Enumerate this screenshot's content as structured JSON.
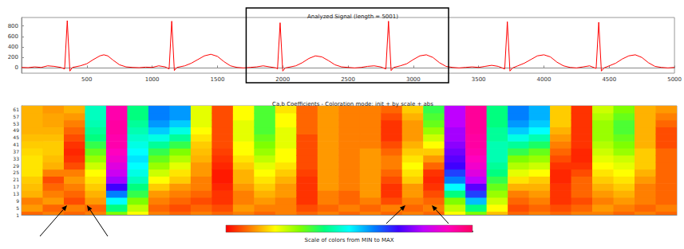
{
  "chart_data": [
    {
      "type": "line",
      "title": "Analyzed Signal (length = 5001)",
      "x": [
        0,
        50,
        100,
        150,
        200,
        250,
        300,
        330,
        350,
        370,
        390,
        450,
        500,
        550,
        600,
        630,
        660,
        700,
        750,
        800,
        850,
        900,
        950,
        1000,
        1050,
        1100,
        1130,
        1150,
        1170,
        1190,
        1250,
        1300,
        1350,
        1400,
        1450,
        1500,
        1550,
        1600,
        1650,
        1700,
        1750,
        1800,
        1850,
        1900,
        1950,
        1960,
        1980,
        2000,
        2020,
        2100,
        2150,
        2200,
        2250,
        2300,
        2350,
        2400,
        2450,
        2500,
        2550,
        2600,
        2650,
        2700,
        2750,
        2790,
        2810,
        2830,
        2850,
        2900,
        2950,
        3000,
        3050,
        3100,
        3150,
        3200,
        3250,
        3300,
        3350,
        3400,
        3450,
        3500,
        3550,
        3600,
        3650,
        3700,
        3720,
        3740,
        3760,
        3800,
        3850,
        3900,
        3950,
        4000,
        4050,
        4100,
        4150,
        4200,
        4250,
        4300,
        4350,
        4400,
        4420,
        4440,
        4460,
        4500,
        4550,
        4600,
        4650,
        4700,
        4750,
        4800,
        4850,
        4900,
        4950,
        5000
      ],
      "values": [
        10,
        5,
        20,
        10,
        40,
        30,
        10,
        -20,
        900,
        -60,
        10,
        40,
        80,
        160,
        230,
        250,
        230,
        150,
        60,
        20,
        10,
        5,
        15,
        10,
        40,
        20,
        -20,
        890,
        -50,
        10,
        40,
        90,
        160,
        230,
        260,
        220,
        120,
        40,
        10,
        0,
        10,
        20,
        40,
        20,
        0,
        -20,
        860,
        -60,
        0,
        40,
        100,
        180,
        230,
        210,
        140,
        60,
        20,
        10,
        0,
        10,
        30,
        40,
        20,
        -20,
        890,
        -50,
        10,
        40,
        80,
        160,
        230,
        250,
        200,
        100,
        30,
        10,
        0,
        10,
        20,
        10,
        30,
        50,
        30,
        -20,
        880,
        -60,
        0,
        40,
        90,
        160,
        230,
        250,
        210,
        110,
        40,
        10,
        0,
        20,
        40,
        -10,
        870,
        -60,
        0,
        40,
        90,
        170,
        230,
        250,
        200,
        100,
        30,
        10,
        0,
        10
      ],
      "color": "#ff0000",
      "xlim": [
        0,
        5000
      ],
      "xticks": [
        500,
        1000,
        1500,
        2000,
        2500,
        3000,
        3500,
        4000,
        4500,
        5000
      ],
      "ylim": [
        -100,
        960
      ],
      "yticks": [
        0,
        200,
        400,
        600,
        800
      ],
      "grid": false,
      "box_xlim": [
        1720,
        3270
      ]
    },
    {
      "type": "heatmap",
      "title": "Ca,b Coefficients - Coloration mode: init + by scale + abs",
      "x": [
        1745,
        1795,
        1845,
        1895,
        1945,
        1995,
        2045,
        2095,
        2145,
        2195,
        2245,
        2295,
        2345,
        2395,
        2445,
        2495,
        2545,
        2595,
        2645,
        2695,
        2745,
        2795,
        2845,
        2895,
        2945,
        2995,
        3045,
        3095,
        3145,
        3195,
        3245
      ],
      "scales": [
        1,
        5,
        9,
        13,
        17,
        21,
        25,
        29,
        33,
        37,
        41,
        45,
        49,
        53,
        57,
        61
      ],
      "cells": [
        [
          8,
          12,
          10,
          14,
          15,
          16,
          18,
          18,
          18,
          17,
          16,
          15,
          14,
          14,
          14,
          14
        ],
        [
          10,
          8,
          12,
          10,
          8,
          6,
          10,
          14,
          15,
          16,
          16,
          15,
          14,
          13,
          13,
          12
        ],
        [
          8,
          10,
          6,
          8,
          10,
          12,
          10,
          6,
          4,
          3,
          4,
          6,
          8,
          10,
          12,
          14
        ],
        [
          10,
          8,
          12,
          14,
          16,
          18,
          20,
          24,
          28,
          32,
          36,
          40,
          42,
          44,
          45,
          45
        ],
        [
          30,
          40,
          50,
          60,
          70,
          78,
          82,
          85,
          88,
          90,
          92,
          92,
          93,
          93,
          92,
          92
        ],
        [
          20,
          25,
          30,
          36,
          40,
          45,
          48,
          50,
          52,
          50,
          48,
          46,
          44,
          42,
          40,
          40
        ],
        [
          10,
          8,
          10,
          12,
          16,
          20,
          24,
          28,
          32,
          36,
          42,
          48,
          54,
          58,
          60,
          60
        ],
        [
          8,
          6,
          8,
          10,
          12,
          16,
          18,
          22,
          26,
          30,
          36,
          42,
          48,
          54,
          58,
          58
        ],
        [
          10,
          8,
          6,
          8,
          10,
          10,
          12,
          12,
          14,
          15,
          16,
          18,
          20,
          22,
          22,
          22
        ],
        [
          8,
          6,
          4,
          4,
          3,
          2,
          2,
          3,
          4,
          5,
          6,
          6,
          6,
          6,
          6,
          6
        ],
        [
          10,
          12,
          10,
          10,
          12,
          14,
          14,
          16,
          18,
          20,
          20,
          22,
          22,
          22,
          20,
          20
        ],
        [
          8,
          10,
          12,
          14,
          16,
          18,
          20,
          22,
          25,
          28,
          30,
          32,
          34,
          34,
          34,
          34
        ],
        [
          10,
          10,
          10,
          12,
          12,
          14,
          16,
          18,
          20,
          20,
          22,
          22,
          22,
          20,
          20,
          18
        ],
        [
          8,
          6,
          4,
          4,
          4,
          4,
          5,
          6,
          6,
          6,
          6,
          6,
          8,
          8,
          8,
          8
        ],
        [
          10,
          8,
          10,
          10,
          12,
          12,
          12,
          12,
          12,
          12,
          12,
          12,
          12,
          12,
          12,
          12
        ],
        [
          8,
          10,
          8,
          8,
          10,
          10,
          10,
          10,
          10,
          10,
          10,
          10,
          10,
          10,
          10,
          10
        ],
        [
          10,
          8,
          10,
          12,
          12,
          12,
          12,
          12,
          12,
          12,
          10,
          10,
          10,
          10,
          10,
          10
        ],
        [
          8,
          10,
          6,
          4,
          4,
          6,
          8,
          10,
          10,
          8,
          6,
          4,
          4,
          4,
          6,
          8
        ],
        [
          10,
          8,
          10,
          12,
          12,
          16,
          18,
          20,
          18,
          16,
          14,
          12,
          12,
          12,
          14,
          16
        ],
        [
          8,
          10,
          8,
          6,
          4,
          3,
          4,
          8,
          12,
          16,
          20,
          24,
          28,
          32,
          34,
          36
        ],
        [
          20,
          25,
          30,
          40,
          50,
          60,
          65,
          70,
          72,
          74,
          76,
          78,
          78,
          80,
          80,
          80
        ],
        [
          30,
          40,
          55,
          65,
          72,
          80,
          85,
          88,
          90,
          92,
          93,
          93,
          94,
          94,
          94,
          94
        ],
        [
          15,
          20,
          24,
          28,
          32,
          36,
          40,
          42,
          44,
          44,
          44,
          42,
          42,
          40,
          40,
          40
        ],
        [
          8,
          6,
          8,
          10,
          14,
          18,
          22,
          26,
          30,
          36,
          42,
          48,
          54,
          58,
          60,
          60
        ],
        [
          10,
          8,
          10,
          12,
          14,
          16,
          20,
          24,
          28,
          32,
          38,
          44,
          50,
          54,
          56,
          56
        ],
        [
          8,
          6,
          4,
          4,
          4,
          3,
          3,
          4,
          6,
          8,
          10,
          12,
          14,
          16,
          16,
          16
        ],
        [
          10,
          8,
          6,
          8,
          8,
          8,
          6,
          4,
          3,
          3,
          4,
          4,
          4,
          4,
          4,
          4
        ],
        [
          10,
          12,
          10,
          12,
          14,
          16,
          18,
          20,
          22,
          24,
          26,
          28,
          28,
          28,
          26,
          24
        ],
        [
          8,
          10,
          12,
          14,
          16,
          18,
          20,
          22,
          24,
          28,
          30,
          32,
          34,
          34,
          32,
          30
        ],
        [
          10,
          8,
          10,
          10,
          10,
          12,
          14,
          16,
          16,
          16,
          14,
          14,
          14,
          14,
          14,
          14
        ],
        [
          8,
          10,
          8,
          8,
          8,
          8,
          8,
          8,
          8,
          8,
          6,
          6,
          6,
          8,
          10,
          12
        ]
      ],
      "xlim": [
        1720,
        3270
      ],
      "ylim": [
        1,
        63
      ],
      "yticks": [
        1,
        5,
        9,
        13,
        17,
        21,
        25,
        29,
        33,
        37,
        41,
        45,
        49,
        53,
        57,
        61
      ],
      "tick_labels": "y",
      "colorbar": {
        "label": "Scale of colors from MIN to MAX",
        "range": [
          0,
          100
        ],
        "ticks": [
          0,
          10,
          20,
          30,
          40,
          50,
          60,
          70,
          80,
          90,
          100
        ],
        "colors": [
          "#ff0000",
          "#ff7f00",
          "#ffff00",
          "#7fff00",
          "#00ff7f",
          "#00ffff",
          "#007fff",
          "#3f00ff",
          "#bf00ff",
          "#ff00bf",
          "#ff0060"
        ]
      }
    }
  ]
}
